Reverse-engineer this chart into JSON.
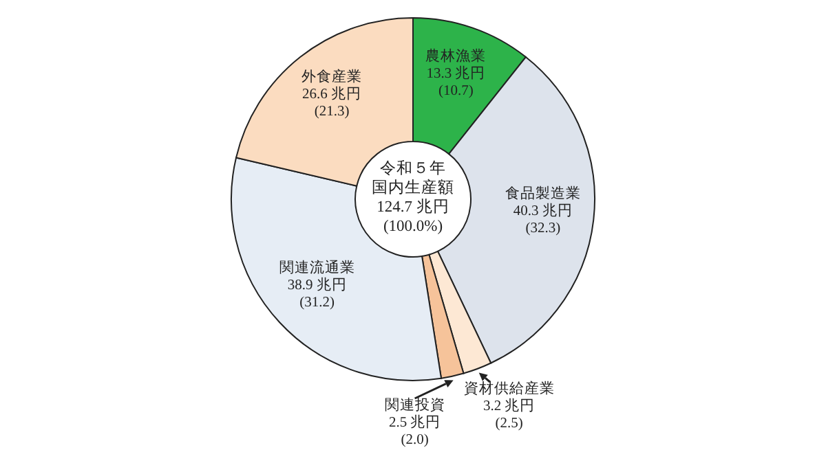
{
  "chart_data": {
    "type": "donut",
    "categories": [
      "農林漁業",
      "食品製造業",
      "資材供給産業",
      "関連投資",
      "関連流通業",
      "外食産業"
    ],
    "values": [
      13.3,
      40.3,
      3.2,
      2.5,
      38.9,
      26.6
    ],
    "colors": [
      "#2db34a",
      "#dde3ec",
      "#fde8d4",
      "#f6c39a",
      "#e6edf5",
      "#fbdcc0"
    ],
    "value_labels": [
      "13.3 兆円\n(10.7)",
      "40.3 兆円\n(32.3)",
      "3.2 兆円\n(2.5)",
      "2.5 兆円\n(2.0)",
      "38.9 兆円\n(31.2)",
      "26.6 兆円\n(21.3)"
    ],
    "annotations": [
      "令和５年",
      "国内生産額",
      "124.7 兆円",
      "(100.0%)"
    ]
  }
}
